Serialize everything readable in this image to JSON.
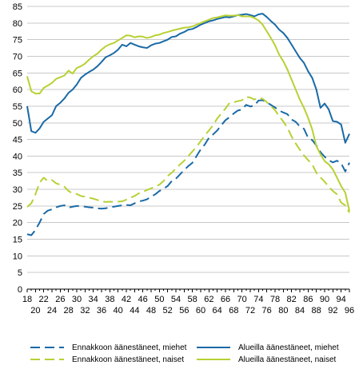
{
  "chart_data": {
    "type": "line",
    "title": "",
    "xlabel": "",
    "ylabel": "",
    "xlim": [
      18,
      96
    ],
    "ylim": [
      0,
      85
    ],
    "y_ticks": [
      0,
      5,
      10,
      15,
      20,
      25,
      30,
      35,
      40,
      45,
      50,
      55,
      60,
      65,
      70,
      75,
      80,
      85
    ],
    "x_ticks_top": [
      18,
      22,
      26,
      30,
      34,
      38,
      42,
      46,
      50,
      54,
      58,
      62,
      66,
      70,
      74,
      78,
      82,
      86,
      90,
      94
    ],
    "x_ticks_bottom": [
      20,
      24,
      28,
      32,
      36,
      40,
      44,
      48,
      52,
      56,
      60,
      64,
      68,
      72,
      76,
      80,
      84,
      88,
      92,
      96
    ],
    "grid": "horizontal",
    "legend_position": "bottom",
    "colors": {
      "miehet": "#1a6aa6",
      "naiset": "#b7d133"
    },
    "series": [
      {
        "name": "Ennakkoon äänestäneet, miehet",
        "color": "#1a6aa6",
        "dash": true,
        "x": [
          18,
          19,
          20,
          21,
          22,
          23,
          24,
          25,
          26,
          27,
          28,
          29,
          30,
          31,
          32,
          33,
          34,
          35,
          36,
          37,
          38,
          39,
          40,
          41,
          42,
          43,
          44,
          45,
          46,
          47,
          48,
          49,
          50,
          51,
          52,
          53,
          54,
          55,
          56,
          57,
          58,
          59,
          60,
          61,
          62,
          63,
          64,
          65,
          66,
          67,
          68,
          69,
          70,
          71,
          72,
          73,
          74,
          75,
          76,
          77,
          78,
          79,
          80,
          81,
          82,
          83,
          84,
          85,
          86,
          87,
          88,
          89,
          90,
          91,
          92,
          93,
          94,
          95,
          96
        ],
        "y": [
          16.5,
          16.2,
          17.8,
          20,
          22.6,
          23.6,
          24,
          24.6,
          25,
          25.2,
          24.5,
          24.8,
          25,
          25,
          24.8,
          24.6,
          24.5,
          24.3,
          24.2,
          24.3,
          24.6,
          24.8,
          25,
          25.2,
          25.3,
          25.2,
          25.8,
          26.4,
          26.6,
          27,
          27.8,
          28.5,
          29.5,
          30.2,
          31,
          32.5,
          33.2,
          34.5,
          35.8,
          37,
          38,
          40,
          42,
          43.5,
          45.5,
          46.5,
          47.7,
          49.3,
          50.8,
          51.7,
          52.8,
          53.7,
          54,
          55.4,
          54.9,
          55.2,
          56.7,
          56.8,
          56.1,
          55.4,
          54.6,
          53.7,
          53.1,
          52.6,
          51,
          50.3,
          48.9,
          48.2,
          45.5,
          44.8,
          43.2,
          41.2,
          39.8,
          38.8,
          38.1,
          38.6,
          37.8,
          35.4,
          38
        ]
      },
      {
        "name": "Ennakkoon äänestäneet, naiset",
        "color": "#b7d133",
        "dash": true,
        "x": [
          18,
          19,
          20,
          21,
          22,
          23,
          24,
          25,
          26,
          27,
          28,
          29,
          30,
          31,
          32,
          33,
          34,
          35,
          36,
          37,
          38,
          39,
          40,
          41,
          42,
          43,
          44,
          45,
          46,
          47,
          48,
          49,
          50,
          51,
          52,
          53,
          54,
          55,
          56,
          57,
          58,
          59,
          60,
          61,
          62,
          63,
          64,
          65,
          66,
          67,
          68,
          69,
          70,
          71,
          72,
          73,
          74,
          75,
          76,
          77,
          78,
          79,
          80,
          81,
          82,
          83,
          84,
          85,
          86,
          87,
          88,
          89,
          90,
          91,
          92,
          93,
          94,
          95,
          96
        ],
        "y": [
          24.7,
          25.8,
          28.5,
          32,
          33.5,
          32.5,
          32.8,
          31.8,
          31.4,
          30.8,
          29.5,
          28.8,
          28.6,
          28,
          27.8,
          27.5,
          27.2,
          26.8,
          26.4,
          26.2,
          26.3,
          26.2,
          26.3,
          26.4,
          26.9,
          27.5,
          28,
          28.8,
          29.2,
          29.8,
          30.3,
          30.8,
          31.4,
          32.5,
          34,
          35,
          36.3,
          37.5,
          38.6,
          40,
          41.4,
          42.8,
          44.5,
          46.2,
          47.7,
          49.3,
          51.3,
          52.8,
          54.3,
          56,
          56.2,
          56.5,
          56.8,
          57.8,
          57.6,
          57,
          57.6,
          57.2,
          56.2,
          55,
          53.8,
          52,
          50.4,
          48.5,
          45.9,
          43.8,
          41.9,
          40.2,
          38.8,
          37.5,
          35,
          33.6,
          32.3,
          30.8,
          29.5,
          28.5,
          26,
          25.2,
          23
        ]
      },
      {
        "name": "Alueilla äänestäneet, miehet",
        "color": "#1a6aa6",
        "dash": false,
        "x": [
          18,
          19,
          20,
          21,
          22,
          23,
          24,
          25,
          26,
          27,
          28,
          29,
          30,
          31,
          32,
          33,
          34,
          35,
          36,
          37,
          38,
          39,
          40,
          41,
          42,
          43,
          44,
          45,
          46,
          47,
          48,
          49,
          50,
          51,
          52,
          53,
          54,
          55,
          56,
          57,
          58,
          59,
          60,
          61,
          62,
          63,
          64,
          65,
          66,
          67,
          68,
          69,
          70,
          71,
          72,
          73,
          74,
          75,
          76,
          77,
          78,
          79,
          80,
          81,
          82,
          83,
          84,
          85,
          86,
          87,
          88,
          89,
          90,
          91,
          92,
          93,
          94,
          95,
          96
        ],
        "y": [
          55,
          47.5,
          47,
          48.3,
          50.3,
          51.3,
          52.3,
          55,
          56,
          57.3,
          59,
          60,
          61.5,
          63.5,
          64.5,
          65.3,
          66,
          67,
          68.3,
          69.7,
          70.3,
          71,
          72,
          73.5,
          73,
          74,
          73.5,
          73,
          72.7,
          72.5,
          73.3,
          73.8,
          74,
          74.5,
          75,
          75.8,
          76,
          76.8,
          77.3,
          78,
          78.2,
          78.8,
          79.5,
          80,
          80.5,
          80.8,
          81.2,
          81.5,
          81.8,
          81.7,
          82,
          82.4,
          82.5,
          82.7,
          82.4,
          82,
          82.6,
          82.8,
          81.8,
          80.6,
          79.5,
          78,
          77,
          75.5,
          73.5,
          71.5,
          69.5,
          68,
          65.5,
          63.5,
          60,
          54.5,
          55.8,
          54,
          50.5,
          50.3,
          49.5,
          44,
          46.7
        ]
      },
      {
        "name": "Alueilla äänestäneet, naiset",
        "color": "#b7d133",
        "dash": false,
        "x": [
          18,
          19,
          20,
          21,
          22,
          23,
          24,
          25,
          26,
          27,
          28,
          29,
          30,
          31,
          32,
          33,
          34,
          35,
          36,
          37,
          38,
          39,
          40,
          41,
          42,
          43,
          44,
          45,
          46,
          47,
          48,
          49,
          50,
          51,
          52,
          53,
          54,
          55,
          56,
          57,
          58,
          59,
          60,
          61,
          62,
          63,
          64,
          65,
          66,
          67,
          68,
          69,
          70,
          71,
          72,
          73,
          74,
          75,
          76,
          77,
          78,
          79,
          80,
          81,
          82,
          83,
          84,
          85,
          86,
          87,
          88,
          89,
          90,
          91,
          92,
          93,
          94,
          95,
          96
        ],
        "y": [
          64,
          59.5,
          58.8,
          58.8,
          60.5,
          61.2,
          62,
          63.2,
          63.7,
          64.2,
          65.7,
          64.8,
          66.5,
          67,
          67.8,
          69,
          70,
          70.8,
          72,
          73,
          73.6,
          74,
          74.8,
          75.5,
          76.3,
          76.2,
          75.7,
          76,
          75.9,
          75.5,
          75.8,
          76.3,
          76.5,
          77,
          77.3,
          77.7,
          78,
          78.3,
          78.6,
          78.7,
          79,
          79.5,
          80,
          80.5,
          81,
          81.5,
          81.7,
          82,
          82.3,
          82.2,
          82.2,
          82.4,
          82,
          82,
          82,
          81.5,
          80.8,
          79.5,
          77.5,
          75.5,
          73.3,
          70.5,
          68.5,
          66,
          63,
          60,
          57,
          54.5,
          51.5,
          48,
          43,
          40.5,
          38.5,
          37.5,
          36,
          33.5,
          31,
          29,
          23.5
        ]
      }
    ]
  }
}
